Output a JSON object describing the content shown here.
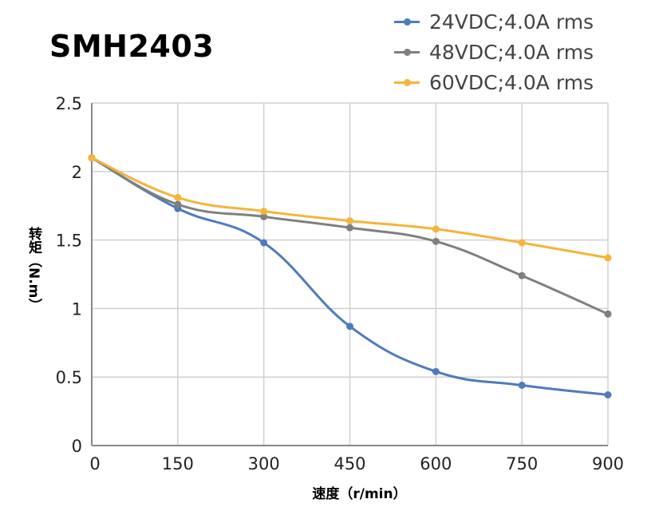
{
  "chart_data": {
    "type": "line",
    "title": "SMH2403",
    "xlabel": "速度（r/min）",
    "ylabel": "转矩（N.m）",
    "x": [
      0,
      150,
      300,
      450,
      600,
      750,
      900
    ],
    "xlim": [
      0,
      900
    ],
    "ylim": [
      0,
      2.5
    ],
    "xticks": [
      "0",
      "150",
      "300",
      "450",
      "600",
      "750",
      "900"
    ],
    "yticks": [
      "0",
      "0.5",
      "1",
      "1.5",
      "2",
      "2.5"
    ],
    "grid": true,
    "legend_position": "top-right",
    "series": [
      {
        "name": "24VDC;4.0A rms",
        "color": "#4f7bbd",
        "values": [
          2.1,
          1.73,
          1.48,
          0.87,
          0.54,
          0.44,
          0.37
        ]
      },
      {
        "name": "48VDC;4.0A rms",
        "color": "#7f7f7f",
        "values": [
          2.1,
          1.76,
          1.67,
          1.59,
          1.49,
          1.24,
          0.96
        ]
      },
      {
        "name": "60VDC;4.0A rms",
        "color": "#f4b43a",
        "values": [
          2.1,
          1.81,
          1.71,
          1.64,
          1.58,
          1.48,
          1.37
        ]
      }
    ]
  }
}
